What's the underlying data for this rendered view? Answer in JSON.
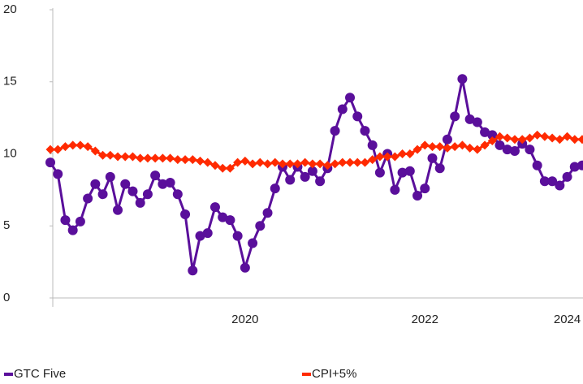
{
  "chart_data": {
    "type": "line",
    "categories": [
      null,
      null,
      null,
      null,
      null,
      null,
      null,
      null,
      null,
      null,
      null,
      null,
      null,
      null,
      null,
      null,
      null,
      null,
      null,
      null,
      null,
      null,
      null,
      null,
      null,
      null,
      "2020",
      null,
      null,
      null,
      null,
      null,
      null,
      null,
      null,
      null,
      null,
      null,
      null,
      null,
      null,
      null,
      null,
      null,
      null,
      null,
      null,
      null,
      null,
      null,
      "2022",
      null,
      null,
      null,
      null,
      null,
      null,
      null,
      null,
      null,
      null,
      null,
      null,
      null,
      null,
      null,
      null,
      null,
      null,
      "2024",
      null,
      null
    ],
    "series": [
      {
        "name": "GTC Five",
        "color": "#5a0f9b",
        "marker": "circle",
        "values": [
          9.4,
          8.6,
          5.4,
          4.7,
          5.3,
          6.9,
          7.9,
          7.2,
          8.4,
          6.1,
          7.9,
          7.4,
          6.6,
          7.2,
          8.5,
          7.9,
          8.0,
          7.2,
          5.8,
          1.9,
          4.3,
          4.5,
          6.3,
          5.6,
          5.4,
          4.3,
          2.1,
          3.8,
          5.0,
          5.9,
          7.6,
          9.1,
          8.2,
          9.1,
          8.4,
          8.8,
          8.1,
          9.0,
          11.6,
          13.1,
          13.9,
          12.6,
          11.6,
          10.6,
          8.7,
          10.0,
          7.5,
          8.7,
          8.8,
          7.1,
          7.6,
          9.7,
          9.0,
          11.0,
          12.6,
          15.2,
          12.4,
          12.2,
          11.5,
          11.3,
          10.6,
          10.3,
          10.2,
          10.7,
          10.3,
          9.2,
          8.1,
          8.1,
          7.8,
          8.4,
          9.1,
          9.2
        ]
      },
      {
        "name": "CPI+5%",
        "color": "#ff2a00",
        "marker": "diamond",
        "values": [
          10.3,
          10.3,
          10.5,
          10.6,
          10.6,
          10.5,
          10.2,
          9.9,
          9.9,
          9.8,
          9.8,
          9.8,
          9.7,
          9.7,
          9.7,
          9.7,
          9.7,
          9.6,
          9.6,
          9.6,
          9.5,
          9.4,
          9.2,
          9.0,
          9.0,
          9.4,
          9.5,
          9.3,
          9.4,
          9.3,
          9.4,
          9.3,
          9.3,
          9.3,
          9.4,
          9.3,
          9.3,
          9.2,
          9.3,
          9.4,
          9.4,
          9.4,
          9.4,
          9.6,
          9.8,
          9.8,
          9.8,
          10.0,
          10.0,
          10.3,
          10.6,
          10.5,
          10.5,
          10.4,
          10.5,
          10.6,
          10.4,
          10.3,
          10.6,
          10.9,
          11.2,
          11.1,
          11.0,
          11.0,
          11.1,
          11.3,
          11.2,
          11.1,
          11.0,
          11.2,
          11.0,
          11.0
        ]
      }
    ],
    "ylim": [
      0,
      20
    ],
    "yticks": [
      0,
      5,
      10,
      15,
      20
    ],
    "grid": false,
    "legend": "bottom"
  }
}
